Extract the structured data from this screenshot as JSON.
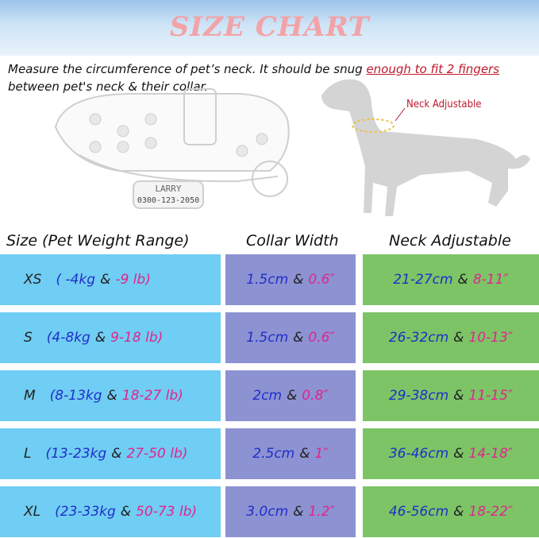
{
  "header": {
    "title": "SIZE CHART"
  },
  "instructions": {
    "text": "Measure the circumference of pet’s neck. It should be snug ",
    "highlight": "enough to fit 2 fingers",
    "text_end": "between pet's neck & their collar."
  },
  "illustration": {
    "tag_name": "LARRY",
    "tag_phone": "0300-123-2050",
    "dog_label": "Neck Adjustable"
  },
  "table": {
    "headers": [
      "Size (Pet Weight Range)",
      "Collar Width",
      "Neck Adjustable"
    ],
    "separator": "&",
    "rows": [
      {
        "size": "XS",
        "weight_kg": "( -4kg",
        "weight_lb": "-9 lb)",
        "width_cm": "1.5cm",
        "width_in": "0.6″",
        "neck_cm": "21-27cm",
        "neck_in": "8-11″"
      },
      {
        "size": "S",
        "weight_kg": "(4-8kg",
        "weight_lb": "9-18 lb)",
        "width_cm": "1.5cm",
        "width_in": "0.6″",
        "neck_cm": "26-32cm",
        "neck_in": "10-13″"
      },
      {
        "size": "M",
        "weight_kg": "(8-13kg",
        "weight_lb": "18-27 lb)",
        "width_cm": "2cm",
        "width_in": "0.8″",
        "neck_cm": "29-38cm",
        "neck_in": "11-15″"
      },
      {
        "size": "L",
        "weight_kg": "(13-23kg",
        "weight_lb": "27-50 lb)",
        "width_cm": "2.5cm",
        "width_in": "1″",
        "neck_cm": "36-46cm",
        "neck_in": "14-18″"
      },
      {
        "size": "XL",
        "weight_kg": "(23-33kg",
        "weight_lb": "50-73 lb)",
        "width_cm": "3.0cm",
        "width_in": "1.2″",
        "neck_cm": "46-56cm",
        "neck_in": "18-22″"
      }
    ]
  }
}
